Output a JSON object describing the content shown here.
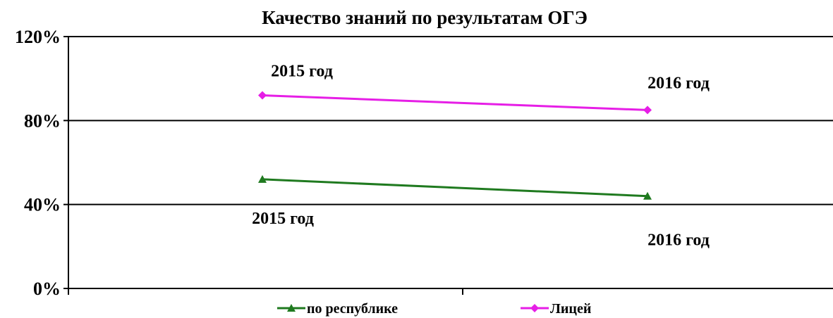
{
  "chart_data": {
    "type": "line",
    "title": "Качество знаний по результатам ОГЭ",
    "categories": [
      "2015 год",
      "2016 год"
    ],
    "y_ticks": [
      "0%",
      "40%",
      "80%",
      "120%"
    ],
    "ylim": [
      0,
      120
    ],
    "grid": true,
    "legend_position": "bottom",
    "series": [
      {
        "name": "по республике",
        "color": "#1f7a1f",
        "marker": "triangle",
        "values": [
          52,
          44
        ],
        "point_labels": [
          "2015 год",
          "2016 год"
        ],
        "label_placement": "below"
      },
      {
        "name": "Лицей",
        "color": "#e61ee6",
        "marker": "diamond",
        "values": [
          92,
          85
        ],
        "point_labels": [
          "2015 год",
          "2016 год"
        ],
        "label_placement": "above"
      }
    ]
  }
}
